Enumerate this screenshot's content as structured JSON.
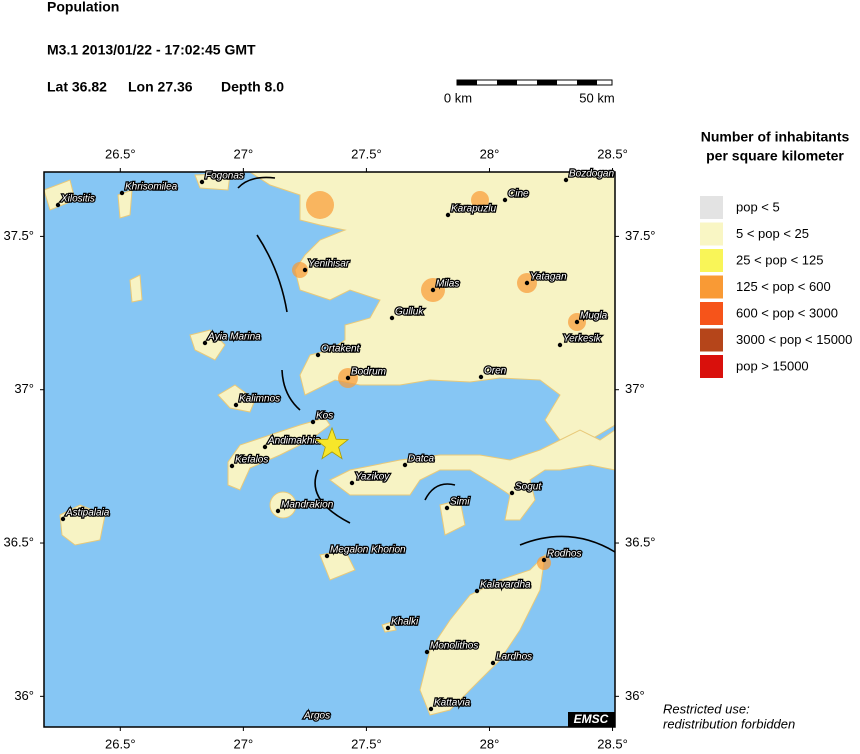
{
  "header": {
    "title": "Population",
    "event": "M3.1  2013/01/22 - 17:02:45 GMT",
    "lat": "Lat 36.82",
    "lon": "Lon 27.36",
    "depth": "Depth  8.0"
  },
  "scale_bar": {
    "start": "0 km",
    "end": "50 km"
  },
  "map": {
    "xlim": [
      26.19,
      28.51
    ],
    "ylim": [
      35.9,
      37.71
    ],
    "xticks": [
      {
        "value": 26.5,
        "label": "26.5°"
      },
      {
        "value": 27,
        "label": "27°"
      },
      {
        "value": 27.5,
        "label": "27.5°"
      },
      {
        "value": 28,
        "label": "28°"
      },
      {
        "value": 28.5,
        "label": "28.5°"
      }
    ],
    "yticks": [
      {
        "value": 36,
        "label": "36°"
      },
      {
        "value": 36.5,
        "label": "36.5°"
      },
      {
        "value": 37,
        "label": "37°"
      },
      {
        "value": 37.5,
        "label": "37.5°"
      }
    ],
    "epicenter": {
      "lon": 27.36,
      "lat": 36.82,
      "color": "#f7e62a"
    }
  },
  "places": [
    "Xilositis",
    "Khrisomilea",
    "Fogonas",
    "Bozdogan",
    "Cine",
    "Karapuzlu",
    "Yenihisar",
    "Milas",
    "Yatagan",
    "Gulluk",
    "Mugla",
    "Yerkesik",
    "Ayia Marina",
    "Ortakent",
    "Bodrum",
    "Oren",
    "Kalimnos",
    "Kos",
    "Andimakhia",
    "Kefalos",
    "Datca",
    "Yazikoy",
    "Simi",
    "Sogut",
    "Mandrakion",
    "Astipalaia",
    "Megalon Khorion",
    "Rodhos",
    "Kalavardha",
    "Khalki",
    "Monolithos",
    "Lardhos",
    "Kattavia",
    "Argos"
  ],
  "legend": {
    "title": [
      "Number of inhabitants",
      "per square kilometer"
    ],
    "items": [
      {
        "label": "pop < 5",
        "color": "#e3e3e3"
      },
      {
        "label": "5 < pop < 25",
        "color": "#f9f6c4"
      },
      {
        "label": "25 < pop < 125",
        "color": "#f9f558"
      },
      {
        "label": "125 < pop < 600",
        "color": "#f99a35"
      },
      {
        "label": "600 < pop < 3000",
        "color": "#f6541a"
      },
      {
        "label": "3000 < pop < 15000",
        "color": "#b5451a"
      },
      {
        "label": "pop > 15000",
        "color": "#d9100c"
      }
    ]
  },
  "footer": {
    "badge": "EMSC",
    "note": [
      "Restricted use:",
      "redistribution forbidden"
    ]
  }
}
